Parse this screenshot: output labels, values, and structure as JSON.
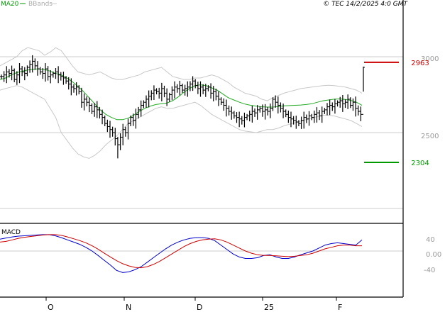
{
  "header": {
    "ma_label": "MA20",
    "bb_label": "BBands",
    "source": "© TEC 14/2/2025 4:0 GMT"
  },
  "chart_data": [
    {
      "type": "ohlc",
      "title": "",
      "indicators": [
        "MA20",
        "BBands"
      ],
      "x_labels": [
        "O",
        "N",
        "D",
        "25",
        "F"
      ],
      "ylim": [
        2100,
        3100
      ],
      "yticks": [
        2500,
        3000
      ],
      "grid": true,
      "levels": [
        {
          "label": "2963",
          "value": 2963,
          "color": "#cc0000"
        },
        {
          "label": "2304",
          "value": 2304,
          "color": "#009900"
        }
      ],
      "close": [
        2870,
        2880,
        2900,
        2890,
        2910,
        2850,
        2880,
        2920,
        2900,
        2890,
        2930,
        2950,
        2970,
        2940,
        2920,
        2900,
        2890,
        2920,
        2870,
        2880,
        2890,
        2900,
        2880,
        2870,
        2860,
        2840,
        2820,
        2800,
        2790,
        2800,
        2770,
        2700,
        2720,
        2700,
        2680,
        2640,
        2670,
        2650,
        2620,
        2600,
        2560,
        2540,
        2520,
        2500,
        2460,
        2420,
        2470,
        2520,
        2500,
        2560,
        2600,
        2580,
        2620,
        2650,
        2680,
        2700,
        2720,
        2740,
        2760,
        2780,
        2770,
        2760,
        2790,
        2760,
        2720,
        2750,
        2780,
        2800,
        2790,
        2810,
        2780,
        2790,
        2800,
        2820,
        2840,
        2810,
        2790,
        2800,
        2780,
        2790,
        2800,
        2760,
        2770,
        2740,
        2720,
        2700,
        2680,
        2660,
        2640,
        2630,
        2610,
        2600,
        2590,
        2580,
        2600,
        2610,
        2620,
        2640,
        2630,
        2650,
        2660,
        2640,
        2650,
        2640,
        2660,
        2720,
        2700,
        2680,
        2660,
        2640,
        2620,
        2600,
        2590,
        2580,
        2570,
        2560,
        2580,
        2600,
        2590,
        2610,
        2600,
        2620,
        2630,
        2610,
        2640,
        2650,
        2670,
        2680,
        2670,
        2690,
        2700,
        2710,
        2690,
        2700,
        2720,
        2680,
        2700,
        2660,
        2640,
        2620,
        2930
      ],
      "ma20": [
        2850,
        2860,
        2880,
        2895,
        2905,
        2912,
        2918,
        2920,
        2915,
        2905,
        2890,
        2880,
        2860,
        2835,
        2805,
        2770,
        2730,
        2690,
        2650,
        2620,
        2600,
        2585,
        2585,
        2595,
        2615,
        2640,
        2660,
        2675,
        2685,
        2690,
        2695,
        2710,
        2735,
        2765,
        2790,
        2810,
        2815,
        2810,
        2795,
        2780,
        2755,
        2730,
        2715,
        2700,
        2688,
        2680,
        2675,
        2670,
        2668,
        2668,
        2672,
        2676,
        2678,
        2680,
        2682,
        2685,
        2690,
        2700,
        2710,
        2715,
        2720,
        2722,
        2718,
        2712,
        2700,
        2680
      ],
      "bb_upper": [
        2940,
        2960,
        2980,
        3000,
        3040,
        3060,
        3050,
        3040,
        3010,
        3030,
        3060,
        3040,
        2990,
        2940,
        2900,
        2890,
        2880,
        2890,
        2900,
        2880,
        2860,
        2850,
        2850,
        2860,
        2870,
        2880,
        2900,
        2910,
        2920,
        2930,
        2900,
        2870,
        2860,
        2850,
        2850,
        2860,
        2860,
        2870,
        2880,
        2870,
        2850,
        2830,
        2800,
        2780,
        2760,
        2750,
        2740,
        2720,
        2710,
        2730,
        2745,
        2760,
        2770,
        2780,
        2790,
        2795,
        2800,
        2805,
        2810,
        2812,
        2810,
        2805,
        2800,
        2790,
        2780,
        2760
      ],
      "bb_lower": [
        2780,
        2790,
        2800,
        2810,
        2800,
        2780,
        2760,
        2740,
        2720,
        2660,
        2600,
        2500,
        2450,
        2400,
        2360,
        2340,
        2330,
        2350,
        2380,
        2420,
        2450,
        2480,
        2520,
        2560,
        2580,
        2600,
        2620,
        2640,
        2660,
        2670,
        2660,
        2660,
        2670,
        2680,
        2690,
        2700,
        2680,
        2650,
        2620,
        2600,
        2580,
        2560,
        2540,
        2520,
        2510,
        2505,
        2500,
        2510,
        2520,
        2520,
        2530,
        2545,
        2555,
        2565,
        2575,
        2585,
        2595,
        2605,
        2615,
        2615,
        2610,
        2600,
        2590,
        2580,
        2560,
        2540
      ]
    },
    {
      "type": "line",
      "title": "MACD",
      "ylim": [
        -60,
        60
      ],
      "yticks": [
        40,
        0,
        -40
      ],
      "ytick_labels": [
        "40",
        "0.00",
        "-40"
      ],
      "series": [
        {
          "color": "#0000cc",
          "values": [
            32,
            35,
            38,
            40,
            41,
            42,
            43,
            44,
            44,
            41,
            36,
            30,
            24,
            18,
            10,
            0,
            -12,
            -25,
            -38,
            -52,
            -58,
            -56,
            -50,
            -42,
            -30,
            -18,
            -6,
            6,
            16,
            24,
            30,
            34,
            36,
            36,
            34,
            28,
            16,
            4,
            -8,
            -16,
            -20,
            -20,
            -18,
            -12,
            -10,
            -16,
            -20,
            -20,
            -16,
            -10,
            -5,
            0,
            8,
            16,
            20,
            22,
            20,
            18,
            16,
            30
          ]
        },
        {
          "color": "#cc0000",
          "values": [
            24,
            26,
            30,
            34,
            37,
            39,
            41,
            43,
            44,
            44,
            42,
            38,
            33,
            28,
            22,
            14,
            5,
            -6,
            -16,
            -26,
            -34,
            -40,
            -44,
            -45,
            -42,
            -36,
            -28,
            -18,
            -8,
            2,
            12,
            20,
            26,
            30,
            32,
            33,
            30,
            24,
            16,
            8,
            0,
            -6,
            -10,
            -12,
            -12,
            -13,
            -14,
            -15,
            -14,
            -12,
            -10,
            -6,
            0,
            6,
            10,
            14,
            16,
            16,
            14,
            14
          ]
        }
      ]
    }
  ]
}
